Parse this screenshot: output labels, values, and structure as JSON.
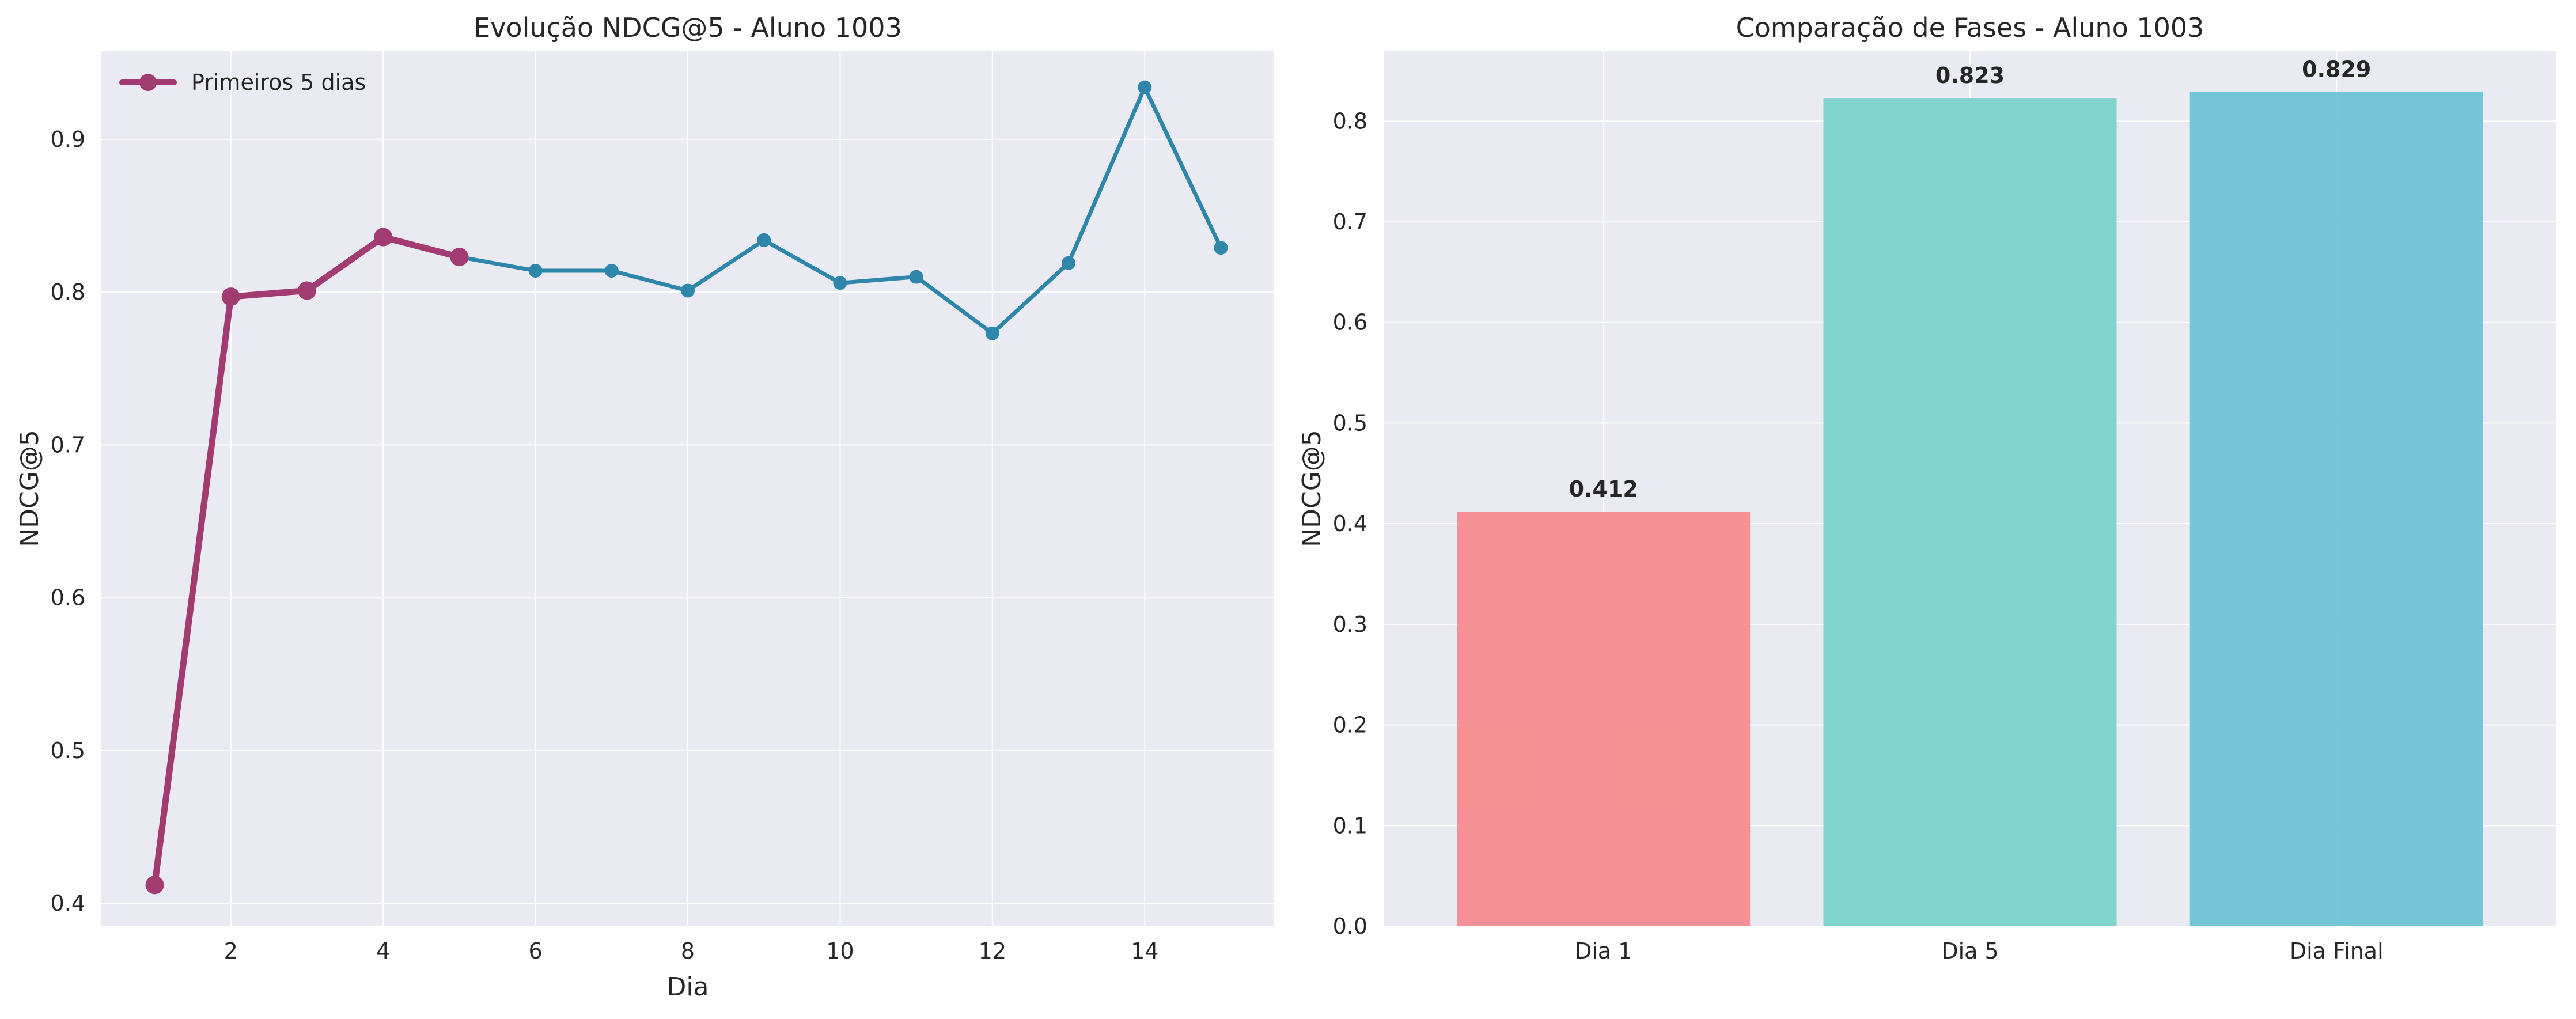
{
  "chart_data": [
    {
      "type": "line",
      "title": "Evolução NDCG@5 - Aluno 1003",
      "xlabel": "Dia",
      "ylabel": "NDCG@5",
      "xlim": [
        0.3,
        15.7
      ],
      "ylim": [
        0.385,
        0.958
      ],
      "xticks": [
        2,
        4,
        6,
        8,
        10,
        12,
        14
      ],
      "yticks": [
        0.4,
        0.5,
        0.6,
        0.7,
        0.8,
        0.9
      ],
      "grid": true,
      "legend_position": "top-left",
      "colors": {
        "full": "#2e86ab",
        "highlight": "#a23b72",
        "background": "#eaeaf2"
      },
      "series": [
        {
          "role": "full",
          "x": [
            1,
            2,
            3,
            4,
            5,
            6,
            7,
            8,
            9,
            10,
            11,
            12,
            13,
            14,
            15
          ],
          "values": [
            0.412,
            0.797,
            0.801,
            0.836,
            0.823,
            0.814,
            0.814,
            0.801,
            0.834,
            0.806,
            0.81,
            0.773,
            0.819,
            0.934,
            0.829
          ]
        },
        {
          "role": "highlight",
          "name": "Primeiros 5 dias",
          "x": [
            1,
            2,
            3,
            4,
            5
          ],
          "values": [
            0.412,
            0.797,
            0.801,
            0.836,
            0.823
          ]
        }
      ]
    },
    {
      "type": "bar",
      "title": "Comparação de Fases - Aluno 1003",
      "xlabel": "",
      "ylabel": "NDCG@5",
      "categories": [
        "Dia 1",
        "Dia 5",
        "Dia Final"
      ],
      "values": [
        0.412,
        0.823,
        0.829
      ],
      "value_labels": [
        "0.412",
        "0.823",
        "0.829"
      ],
      "colors": [
        "#f78c8f",
        "#79d3cb",
        "#6fc3d6"
      ],
      "ylim": [
        0,
        0.87
      ],
      "yticks": [
        0.0,
        0.1,
        0.2,
        0.3,
        0.4,
        0.5,
        0.6,
        0.7,
        0.8
      ],
      "grid": true,
      "background": "#eaeaf2"
    }
  ]
}
